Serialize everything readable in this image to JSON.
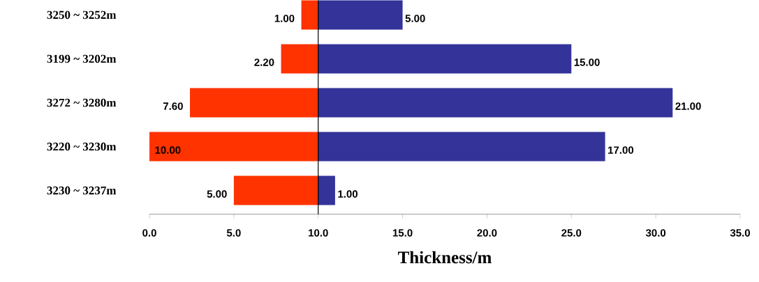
{
  "chart_data": {
    "type": "bar",
    "orientation": "horizontal",
    "xlabel": "Thickness/m",
    "categories": [
      "3250 ~ 3252m",
      "3199 ~ 3202m",
      "3272 ~ 3280m",
      "3220 ~ 3230m",
      "3230 ~ 3237m"
    ],
    "series": [
      {
        "color": "#ff3300",
        "base": [
          9,
          7.8,
          2.4,
          0,
          5
        ],
        "values": [
          1,
          2.2,
          7.6,
          10,
          5
        ],
        "value_labels": [
          "1.00",
          "2.20",
          "7.60",
          "10.00",
          "5.00"
        ]
      },
      {
        "color": "#333399",
        "base": [
          10,
          10,
          10,
          10,
          10
        ],
        "values": [
          5,
          15,
          21,
          17,
          1
        ],
        "value_labels": [
          "5.00",
          "15.00",
          "21.00",
          "17.00",
          "1.00"
        ]
      }
    ],
    "xlim": [
      0,
      35
    ],
    "xticks": [
      {
        "value": 0,
        "label": "0.0"
      },
      {
        "value": 5,
        "label": "5.0"
      },
      {
        "value": 10,
        "label": "10.0"
      },
      {
        "value": 15,
        "label": "15.0"
      },
      {
        "value": 20,
        "label": "20.0"
      },
      {
        "value": 25,
        "label": "25.0"
      },
      {
        "value": 30,
        "label": "30.0"
      },
      {
        "value": 35,
        "label": "35.0"
      }
    ],
    "ref_lines": [
      {
        "axis": "x",
        "value": 10
      }
    ]
  }
}
